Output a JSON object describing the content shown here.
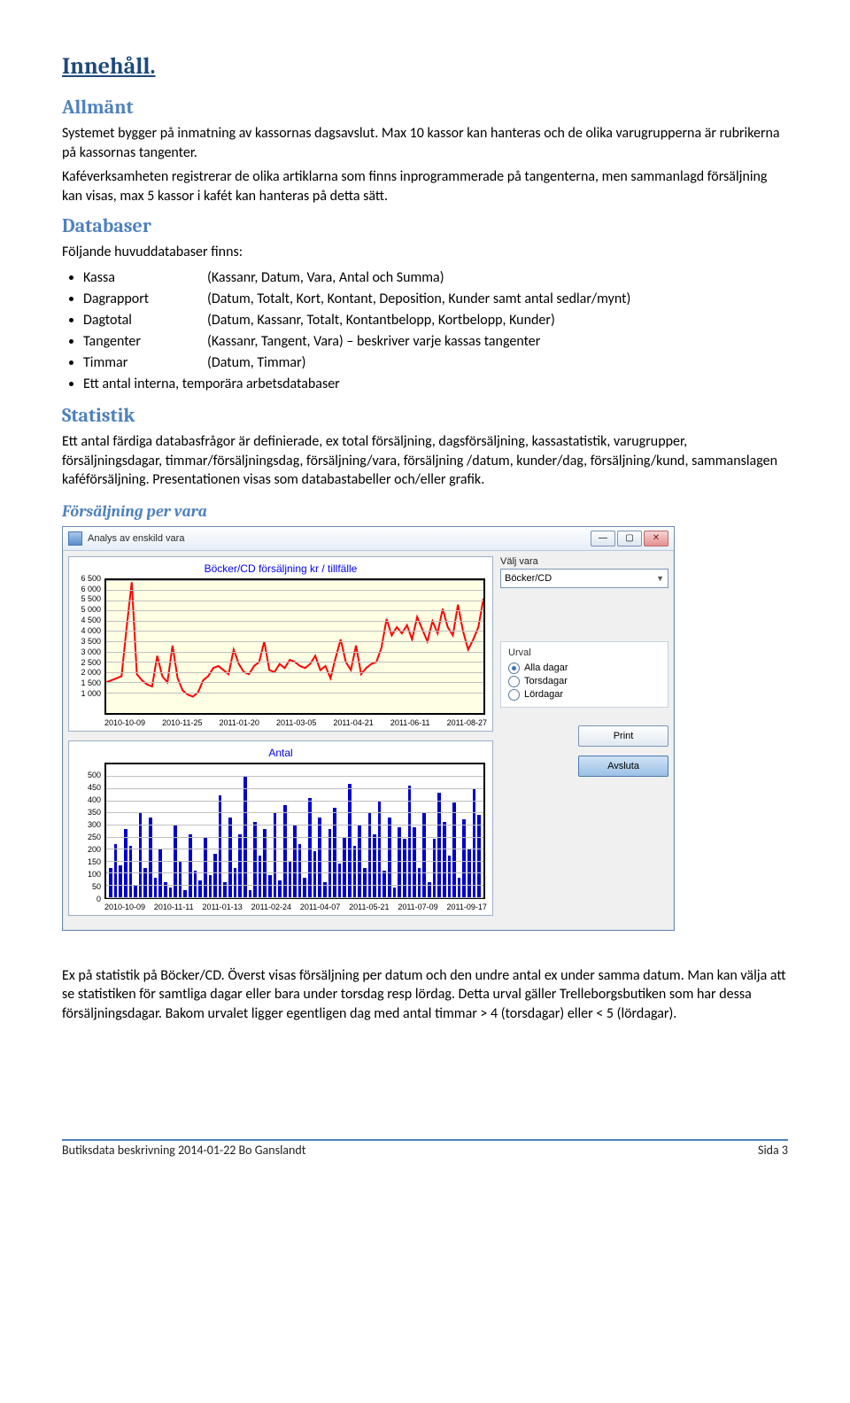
{
  "headings": {
    "toc": "Innehåll.",
    "allmant": "Allmänt",
    "databaser": "Databaser",
    "statistik": "Statistik",
    "forsaljning_per_vara": "Försäljning per vara"
  },
  "paragraphs": {
    "allmant_p1": "Systemet bygger på inmatning av kassornas dagsavslut. Max 10 kassor kan hanteras och de olika varugrupperna är rubrikerna på kassornas tangenter.",
    "allmant_p2": "Kaféverksamheten registrerar de olika artiklarna som finns inprogrammerade på tangenterna, men sammanlagd försäljning kan visas, max 5 kassor i kafét kan hanteras på detta sätt.",
    "databaser_intro": "Följande huvuddatabaser finns:",
    "statistik_p": "Ett antal färdiga databasfrågor är definierade, ex total försäljning, dagsförsäljning, kassastatistik, varugrupper, försäljningsdagar, timmar/försäljningsdag, försäljning/vara, försäljning /datum, kunder/dag, försäljning/kund, sammanslagen kaféförsäljning. Presentationen visas som databastabeller och/eller grafik.",
    "caption_p": "Ex på statistik på Böcker/CD. Överst visas försäljning per datum och den undre antal ex under samma datum. Man kan välja att se statistiken för samtliga dagar eller bara under torsdag resp lördag. Detta urval gäller Trelleborgsbutiken som har dessa försäljningsdagar. Bakom urvalet ligger egentligen dag med antal timmar > 4 (torsdagar) eller < 5 (lördagar)."
  },
  "databaser_items": [
    {
      "name": "Kassa",
      "desc": "(Kassanr, Datum, Vara, Antal och Summa)"
    },
    {
      "name": "Dagrapport",
      "desc": "(Datum, Totalt, Kort, Kontant, Deposition, Kunder samt antal sedlar/mynt)"
    },
    {
      "name": "Dagtotal",
      "desc": "(Datum, Kassanr, Totalt, Kontantbelopp, Kortbelopp, Kunder)"
    },
    {
      "name": "Tangenter",
      "desc": "(Kassanr, Tangent, Vara) – beskriver varje kassas tangenter"
    },
    {
      "name": "Timmar",
      "desc": "(Datum, Timmar)"
    }
  ],
  "databaser_extra": "Ett antal interna, temporära arbetsdatabaser",
  "app": {
    "title": "Analys av enskild vara",
    "window_buttons": {
      "min": "—",
      "max": "▢",
      "close": "✕"
    },
    "side": {
      "valj_vara_label": "Välj vara",
      "valj_vara_value": "Böcker/CD",
      "urval_title": "Urval",
      "radios": [
        {
          "label": "Alla dagar",
          "selected": true
        },
        {
          "label": "Torsdagar",
          "selected": false
        },
        {
          "label": "Lördagar",
          "selected": false
        }
      ],
      "print_btn": "Print",
      "avsluta_btn": "Avsluta"
    },
    "chart1": {
      "title": "Böcker/CD  försäljning  kr / tillfälle",
      "plot_bg": "#ffffe4",
      "line_color": "#ff0000",
      "line_width": 2,
      "grid_color": "#c0c0c0",
      "ylim": [
        0,
        6500
      ],
      "yticks": [
        "6 500",
        "6 000",
        "5 500",
        "5 000",
        "4 500",
        "4 000",
        "3 500",
        "3 000",
        "2 500",
        "2 000",
        "1 500",
        "1 000"
      ],
      "xticks": [
        "2010-10-09",
        "2010-11-25",
        "2011-01-20",
        "2011-03-05",
        "2011-04-21",
        "2011-06-11",
        "2011-08-27"
      ],
      "values": [
        1500,
        1600,
        1700,
        1800,
        4200,
        6400,
        1900,
        1600,
        1400,
        1300,
        2800,
        1800,
        1500,
        3300,
        1700,
        1100,
        900,
        800,
        1000,
        1600,
        1800,
        2200,
        2300,
        2100,
        1900,
        3100,
        2400,
        2000,
        1900,
        2300,
        2500,
        3500,
        2100,
        2000,
        2400,
        2200,
        2600,
        2500,
        2300,
        2200,
        2400,
        2800,
        2100,
        2300,
        1700,
        2700,
        3600,
        2500,
        2100,
        3300,
        1900,
        2200,
        2400,
        2500,
        3200,
        4600,
        3800,
        4200,
        3900,
        4300,
        3600,
        4700,
        4100,
        3500,
        4500,
        3900,
        5100,
        4200,
        3800,
        5300,
        4000,
        3100,
        3600,
        4200,
        5600
      ]
    },
    "chart2": {
      "title": "Antal",
      "plot_bg": "#ffffff",
      "bar_color": "#0000cc",
      "grid_color": "#c0c0c0",
      "ylim": [
        0,
        550
      ],
      "yticks": [
        "500",
        "450",
        "400",
        "350",
        "300",
        "250",
        "200",
        "150",
        "100",
        "50",
        "0"
      ],
      "xticks": [
        "2010-10-09",
        "2010-11-11",
        "2011-01-13",
        "2011-02-24",
        "2011-04-07",
        "2011-05-21",
        "2011-07-09",
        "2011-09-17"
      ],
      "values": [
        120,
        220,
        130,
        280,
        210,
        50,
        350,
        120,
        330,
        80,
        200,
        60,
        40,
        300,
        150,
        30,
        260,
        110,
        70,
        250,
        90,
        180,
        420,
        60,
        330,
        120,
        260,
        500,
        30,
        310,
        170,
        280,
        90,
        350,
        70,
        380,
        150,
        300,
        220,
        80,
        410,
        190,
        330,
        60,
        280,
        370,
        140,
        250,
        470,
        210,
        300,
        120,
        350,
        260,
        400,
        110,
        330,
        40,
        290,
        240,
        460,
        290,
        120,
        350,
        60,
        240,
        430,
        310,
        170,
        390,
        80,
        320,
        200,
        450,
        340
      ]
    }
  },
  "footer": {
    "left": "Butiksdata beskrivning 2014-01-22 Bo Ganslandt",
    "right": "Sida 3"
  }
}
